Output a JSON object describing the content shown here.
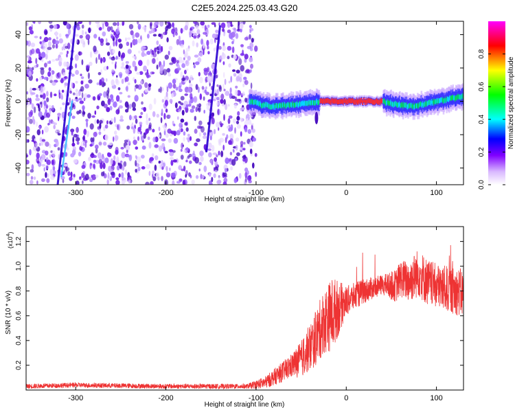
{
  "title": "C2E5.2024.225.03.43.G20",
  "chart_data": [
    {
      "type": "heatmap",
      "title": "C2E5.2024.225.03.43.G20",
      "xlabel": "Height of straight line (km)",
      "ylabel": "Frequency (Hz)",
      "xlim": [
        -355,
        130
      ],
      "ylim": [
        -50,
        48
      ],
      "xticks": [
        -300,
        -200,
        -100,
        0,
        100
      ],
      "xtick_labels": [
        "-300",
        "-200",
        "-100",
        "0",
        "100"
      ],
      "yticks": [
        -40,
        -20,
        0,
        20,
        40
      ],
      "ytick_labels": [
        "-40",
        "-20",
        "0",
        "20",
        "40"
      ],
      "colorbar": {
        "label": "Normalized spectral amplitude",
        "range": [
          0,
          1
        ],
        "ticks": [
          0.0,
          0.2,
          0.4,
          0.6,
          0.8
        ],
        "tick_labels": [
          "0.0",
          "0.2",
          "0.4",
          "0.6",
          "0.8"
        ],
        "colormap": [
          "#ffffff",
          "#8000ff",
          "#0000ff",
          "#00ffff",
          "#00ff00",
          "#ffff00",
          "#ff0000",
          "#ff00ff"
        ]
      },
      "noise_region_x": [
        -355,
        -100
      ],
      "noise_color": "#6a1ae0",
      "band_center_freq": [
        [
          -105,
          0
        ],
        [
          -95,
          -2
        ],
        [
          -80,
          -3
        ],
        [
          -60,
          -2
        ],
        [
          -40,
          -1
        ],
        [
          -30,
          0
        ],
        [
          0,
          0
        ],
        [
          40,
          0
        ],
        [
          55,
          -2
        ],
        [
          75,
          -3
        ],
        [
          90,
          -1
        ],
        [
          110,
          1
        ],
        [
          130,
          3
        ]
      ],
      "streaks": [
        {
          "x0": -320,
          "y0": -50,
          "x1": -300,
          "y1": 48,
          "color": "#2a00d0"
        },
        {
          "x0": -316,
          "y0": -45,
          "x1": -304,
          "y1": 0,
          "color": "#40c0ff"
        },
        {
          "x0": -155,
          "y0": -30,
          "x1": -140,
          "y1": 45,
          "color": "#2a00d0"
        }
      ]
    },
    {
      "type": "area",
      "xlabel": "Height of straight line (km)",
      "ylabel": "SNR (10 * v/v)",
      "y_multiplier": "(x10",
      "y_multiplier_exp": "4",
      "xlim": [
        -355,
        130
      ],
      "ylim": [
        0,
        1.32
      ],
      "xticks": [
        -300,
        -200,
        -100,
        0,
        100
      ],
      "xtick_labels": [
        "-300",
        "-200",
        "-100",
        "0",
        "100"
      ],
      "yticks": [
        0.2,
        0.4,
        0.6,
        0.8,
        1.0,
        1.2
      ],
      "ytick_labels": [
        "0.2",
        "0.4",
        "0.6",
        "0.8",
        "1.0",
        "1.2"
      ],
      "series_color": "#ee3333",
      "envelope": {
        "x": [
          -355,
          -300,
          -200,
          -110,
          -90,
          -70,
          -50,
          -35,
          -25,
          -15,
          0,
          20,
          40,
          55,
          60,
          70,
          80,
          90,
          100,
          110,
          120,
          130
        ],
        "y": [
          0.03,
          0.04,
          0.03,
          0.03,
          0.06,
          0.15,
          0.25,
          0.4,
          0.55,
          0.62,
          0.72,
          0.8,
          0.85,
          0.84,
          0.9,
          0.88,
          0.95,
          0.87,
          0.84,
          0.82,
          0.8,
          0.78
        ]
      },
      "noise_amp": {
        "x": [
          -355,
          -110,
          -90,
          -60,
          -35,
          -15,
          0,
          40,
          60,
          80,
          100,
          130
        ],
        "y": [
          0.02,
          0.02,
          0.05,
          0.1,
          0.22,
          0.3,
          0.12,
          0.08,
          0.15,
          0.2,
          0.18,
          0.2
        ]
      }
    }
  ]
}
